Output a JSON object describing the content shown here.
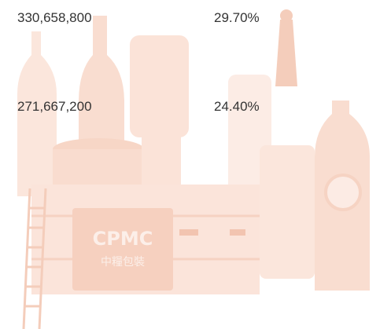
{
  "table": {
    "rows": [
      [
        "330,658,800",
        "29.70%"
      ],
      [
        "271,667,200",
        "24.40%"
      ]
    ]
  },
  "illustration": {
    "logo": "CPMC",
    "logo_subtitle": "中糧包裝"
  }
}
